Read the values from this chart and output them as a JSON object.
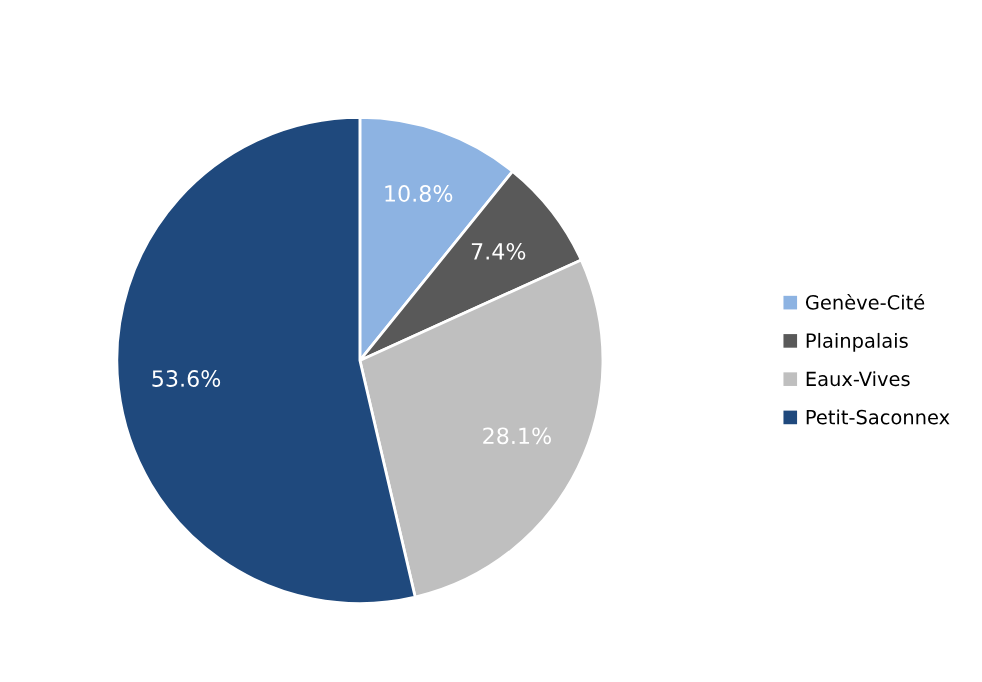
{
  "chart_data": {
    "type": "pie",
    "categories": [
      "Genève-Cité",
      "Plainpalais",
      "Eaux-Vives",
      "Petit-Saconnex"
    ],
    "values": [
      10.8,
      7.4,
      28.1,
      53.6
    ],
    "colors": [
      "#8db3e2",
      "#595959",
      "#bfbfbf",
      "#1f497d"
    ],
    "value_labels": [
      "10.8%",
      "7.4%",
      "28.1%",
      "53.6%"
    ],
    "legend": "right"
  }
}
